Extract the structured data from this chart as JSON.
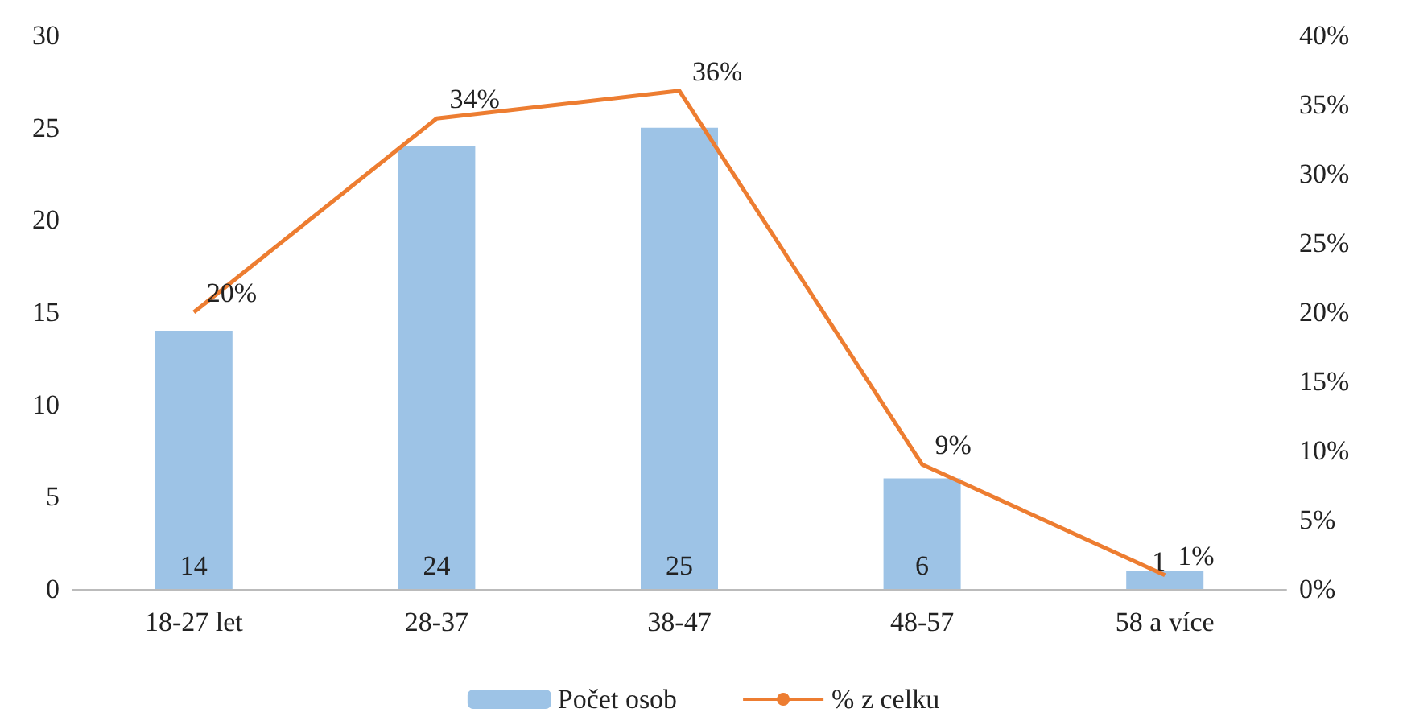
{
  "chart_data": {
    "type": "bar",
    "categories": [
      "18-27 let",
      "28-37",
      "38-47",
      "48-57",
      "58 a více"
    ],
    "series": [
      {
        "name": "Počet osob",
        "color": "#9dc3e6",
        "values": [
          14,
          24,
          25,
          6,
          1
        ],
        "value_labels": [
          "14",
          "24",
          "25",
          "6",
          "1"
        ]
      },
      {
        "name": "% z celku",
        "type": "line",
        "axis": "y2",
        "color": "#ed7d31",
        "values": [
          20,
          34,
          36,
          9,
          1
        ],
        "value_labels": [
          "20%",
          "34%",
          "36%",
          "9%",
          "1%"
        ]
      }
    ],
    "ylim": [
      0,
      30
    ],
    "yticks": [
      0,
      5,
      10,
      15,
      20,
      25,
      30
    ],
    "y2lim": [
      0,
      40
    ],
    "y2ticks": [
      {
        "value": 0,
        "label": "0%"
      },
      {
        "value": 5,
        "label": "5%"
      },
      {
        "value": 10,
        "label": "10%"
      },
      {
        "value": 15,
        "label": "15%"
      },
      {
        "value": 20,
        "label": "20%"
      },
      {
        "value": 25,
        "label": "25%"
      },
      {
        "value": 30,
        "label": "30%"
      },
      {
        "value": 35,
        "label": "35%"
      },
      {
        "value": 40,
        "label": "40%"
      }
    ],
    "grid": false,
    "legend": "bottom",
    "marker": "none"
  }
}
